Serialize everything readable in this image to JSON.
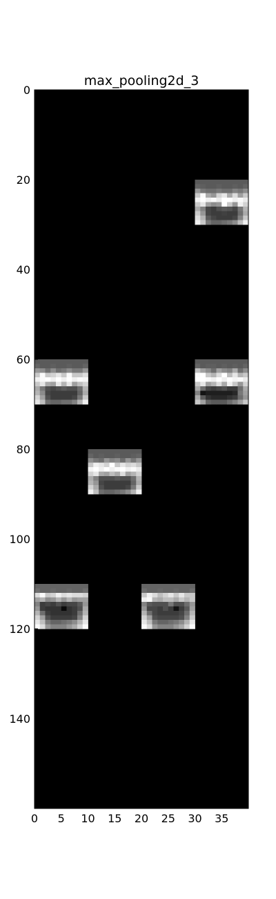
{
  "chart_data": {
    "type": "heatmap",
    "title": "max_pooling2d_3",
    "xlabel": "",
    "ylabel": "",
    "xlim": [
      0,
      40
    ],
    "ylim": [
      160,
      0
    ],
    "grid": false,
    "colormap": "gray",
    "background_value": 0,
    "x_ticks": [
      "0",
      "5",
      "10",
      "15",
      "20",
      "25",
      "30",
      "35"
    ],
    "y_ticks": [
      "0",
      "20",
      "40",
      "60",
      "80",
      "100",
      "120",
      "140"
    ],
    "feature_maps": [
      {
        "col_start": 30,
        "row_start": 20,
        "rows": [
          [
            90,
            90,
            90,
            90,
            90,
            90,
            90,
            90,
            90,
            90
          ],
          [
            100,
            95,
            90,
            90,
            95,
            90,
            90,
            95,
            90,
            100
          ],
          [
            150,
            120,
            110,
            110,
            120,
            110,
            110,
            130,
            120,
            140
          ],
          [
            200,
            250,
            170,
            150,
            210,
            230,
            170,
            220,
            160,
            200
          ],
          [
            240,
            255,
            240,
            250,
            235,
            255,
            255,
            240,
            250,
            235
          ],
          [
            200,
            230,
            160,
            140,
            150,
            255,
            200,
            150,
            240,
            210
          ],
          [
            170,
            130,
            70,
            60,
            80,
            90,
            85,
            70,
            120,
            180
          ],
          [
            200,
            150,
            70,
            60,
            60,
            65,
            60,
            60,
            110,
            170
          ],
          [
            220,
            180,
            90,
            70,
            60,
            60,
            60,
            70,
            130,
            200
          ],
          [
            240,
            200,
            120,
            100,
            100,
            110,
            120,
            140,
            190,
            240
          ]
        ]
      },
      {
        "col_start": 0,
        "row_start": 60,
        "rows": [
          [
            90,
            90,
            90,
            90,
            90,
            90,
            90,
            90,
            90,
            90
          ],
          [
            100,
            90,
            90,
            95,
            90,
            90,
            95,
            90,
            90,
            100
          ],
          [
            150,
            140,
            110,
            140,
            110,
            120,
            140,
            120,
            120,
            150
          ],
          [
            200,
            250,
            200,
            210,
            230,
            200,
            250,
            200,
            200,
            220
          ],
          [
            240,
            250,
            255,
            240,
            255,
            240,
            255,
            240,
            250,
            245
          ],
          [
            200,
            230,
            170,
            160,
            230,
            180,
            230,
            160,
            190,
            210
          ],
          [
            170,
            120,
            80,
            70,
            80,
            90,
            80,
            80,
            110,
            180
          ],
          [
            180,
            140,
            70,
            60,
            60,
            60,
            60,
            60,
            100,
            170
          ],
          [
            210,
            160,
            80,
            60,
            60,
            60,
            60,
            70,
            120,
            200
          ],
          [
            230,
            190,
            110,
            100,
            100,
            110,
            110,
            130,
            180,
            240
          ]
        ]
      },
      {
        "col_start": 30,
        "row_start": 60,
        "rows": [
          [
            90,
            90,
            90,
            90,
            90,
            90,
            90,
            90,
            90,
            90
          ],
          [
            100,
            90,
            95,
            95,
            90,
            95,
            90,
            95,
            90,
            100
          ],
          [
            190,
            160,
            140,
            110,
            160,
            140,
            130,
            170,
            110,
            140
          ],
          [
            250,
            255,
            200,
            180,
            220,
            255,
            190,
            230,
            180,
            200
          ],
          [
            255,
            255,
            250,
            240,
            255,
            240,
            255,
            245,
            250,
            235
          ],
          [
            200,
            230,
            160,
            180,
            220,
            170,
            240,
            200,
            150,
            210
          ],
          [
            170,
            110,
            70,
            60,
            70,
            80,
            60,
            60,
            110,
            170
          ],
          [
            130,
            20,
            30,
            30,
            30,
            30,
            30,
            40,
            120,
            160
          ],
          [
            170,
            90,
            50,
            40,
            40,
            40,
            50,
            60,
            110,
            150
          ],
          [
            200,
            160,
            100,
            90,
            90,
            90,
            110,
            130,
            160,
            200
          ]
        ]
      },
      {
        "col_start": 10,
        "row_start": 80,
        "rows": [
          [
            90,
            90,
            90,
            90,
            90,
            90,
            90,
            90,
            90,
            90
          ],
          [
            100,
            90,
            95,
            90,
            90,
            95,
            90,
            90,
            95,
            100
          ],
          [
            140,
            120,
            110,
            150,
            130,
            140,
            110,
            150,
            120,
            150
          ],
          [
            200,
            240,
            230,
            210,
            255,
            200,
            230,
            210,
            220,
            200
          ],
          [
            245,
            255,
            240,
            255,
            240,
            250,
            255,
            240,
            250,
            235
          ],
          [
            210,
            230,
            170,
            160,
            190,
            170,
            220,
            160,
            180,
            210
          ],
          [
            170,
            130,
            80,
            80,
            80,
            90,
            80,
            80,
            110,
            180
          ],
          [
            180,
            150,
            70,
            60,
            60,
            60,
            60,
            60,
            100,
            170
          ],
          [
            210,
            170,
            80,
            60,
            60,
            60,
            60,
            70,
            120,
            200
          ],
          [
            240,
            190,
            110,
            100,
            100,
            110,
            120,
            140,
            180,
            240
          ]
        ]
      },
      {
        "col_start": 0,
        "row_start": 110,
        "rows": [
          [
            100,
            100,
            100,
            100,
            100,
            100,
            100,
            100,
            100,
            100
          ],
          [
            110,
            100,
            100,
            105,
            100,
            100,
            105,
            100,
            100,
            110
          ],
          [
            220,
            250,
            200,
            210,
            240,
            220,
            230,
            220,
            220,
            210
          ],
          [
            160,
            180,
            140,
            150,
            180,
            150,
            180,
            150,
            160,
            160
          ],
          [
            130,
            60,
            70,
            60,
            80,
            60,
            70,
            70,
            90,
            150
          ],
          [
            150,
            60,
            50,
            50,
            50,
            10,
            50,
            60,
            80,
            170
          ],
          [
            180,
            110,
            60,
            50,
            50,
            50,
            50,
            60,
            110,
            180
          ],
          [
            210,
            160,
            80,
            60,
            60,
            60,
            60,
            70,
            130,
            210
          ],
          [
            230,
            190,
            120,
            100,
            100,
            110,
            120,
            140,
            180,
            230
          ],
          [
            250,
            220,
            150,
            130,
            130,
            130,
            150,
            170,
            210,
            250
          ]
        ]
      },
      {
        "col_start": 20,
        "row_start": 110,
        "rows": [
          [
            100,
            100,
            100,
            100,
            100,
            100,
            100,
            100,
            100,
            100
          ],
          [
            110,
            100,
            100,
            105,
            100,
            100,
            105,
            100,
            100,
            110
          ],
          [
            200,
            240,
            220,
            190,
            210,
            230,
            200,
            230,
            200,
            200
          ],
          [
            240,
            250,
            180,
            170,
            190,
            190,
            170,
            200,
            180,
            200
          ],
          [
            130,
            90,
            80,
            80,
            80,
            120,
            80,
            80,
            110,
            150
          ],
          [
            150,
            70,
            70,
            60,
            80,
            60,
            20,
            60,
            90,
            160
          ],
          [
            180,
            110,
            70,
            60,
            60,
            60,
            60,
            70,
            110,
            180
          ],
          [
            210,
            160,
            80,
            70,
            70,
            70,
            70,
            80,
            130,
            200
          ],
          [
            230,
            190,
            120,
            100,
            100,
            110,
            120,
            140,
            180,
            230
          ],
          [
            250,
            220,
            150,
            130,
            130,
            130,
            150,
            170,
            210,
            250
          ]
        ]
      }
    ]
  }
}
